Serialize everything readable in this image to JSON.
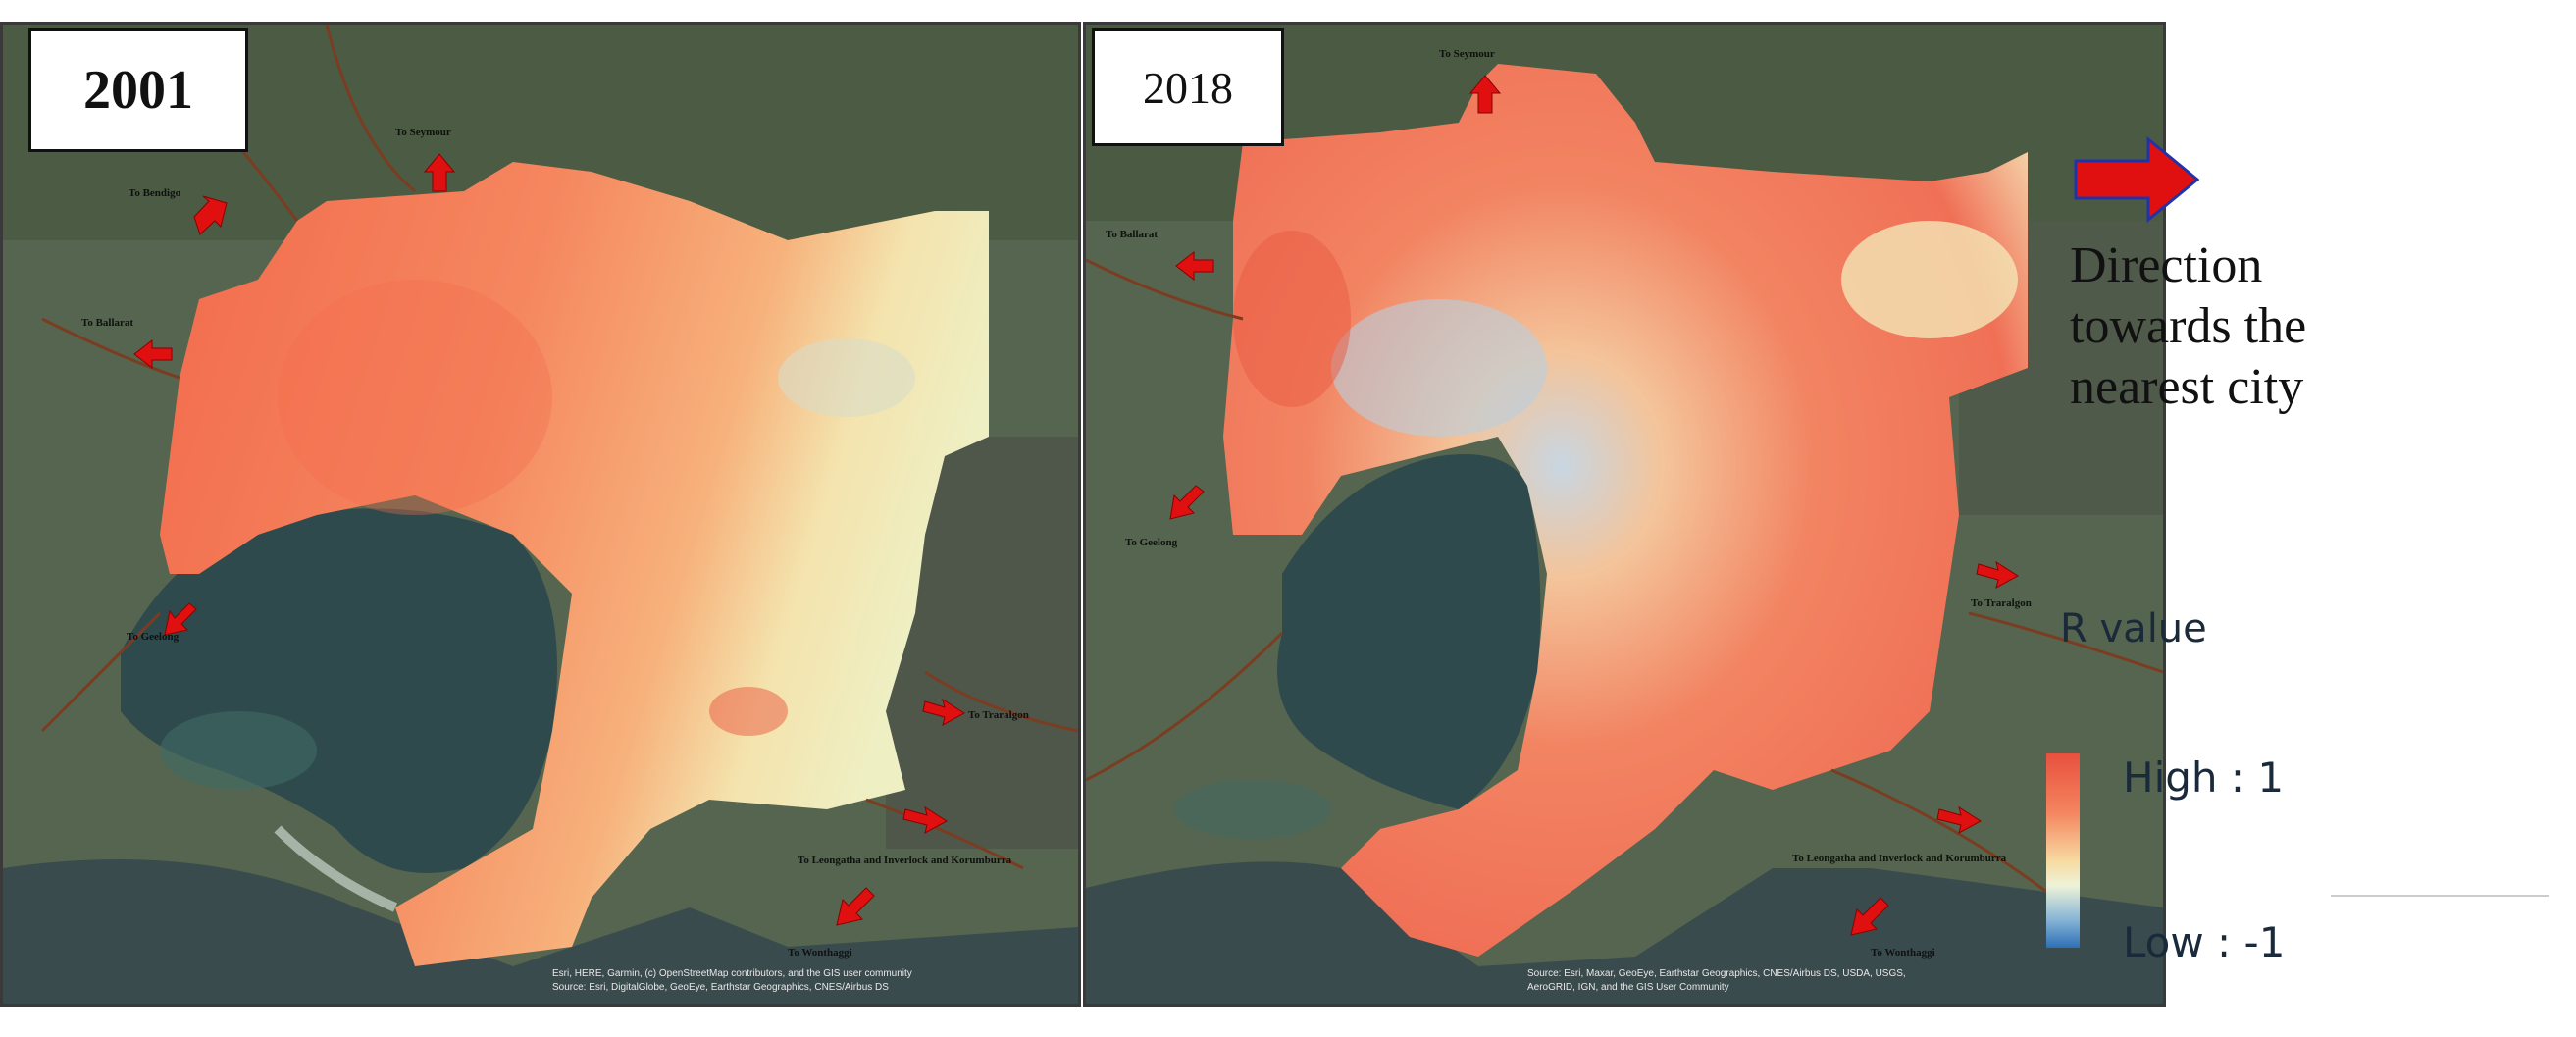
{
  "panels": [
    {
      "year": "2001",
      "destinations": [
        "To Seymour",
        "To Bendigo",
        "To Ballarat",
        "To Geelong",
        "To Traralgon",
        "To Leongatha and Inverlock and Korumburra",
        "To Wonthaggi"
      ],
      "credit_line1": "Esri, HERE, Garmin, (c) OpenStreetMap contributors, and the GIS user community",
      "credit_line2": "Source: Esri, DigitalGlobe, GeoEye, Earthstar Geographics, CNES/Airbus DS"
    },
    {
      "year": "2018",
      "destinations": [
        "To Seymour",
        "To Ballarat",
        "To Geelong",
        "To Traralgon",
        "To Leongatha and Inverlock and Korumburra",
        "To Wonthaggi"
      ],
      "credit_line1": "Source: Esri, Maxar, GeoEye, Earthstar Geographics, CNES/Airbus DS, USDA, USGS,",
      "credit_line2": "AeroGRID, IGN, and the GIS User Community"
    }
  ],
  "legend": {
    "arrow_caption": "Direction towards the nearest city",
    "title": "R value",
    "high": "High : 1",
    "low": "Low : -1",
    "ramp_colors": [
      "#e8503e",
      "#f4845e",
      "#f7d9a0",
      "#eef3d8",
      "#8ab7d6",
      "#2d6fb6"
    ],
    "arrow_color": "#e01010"
  }
}
